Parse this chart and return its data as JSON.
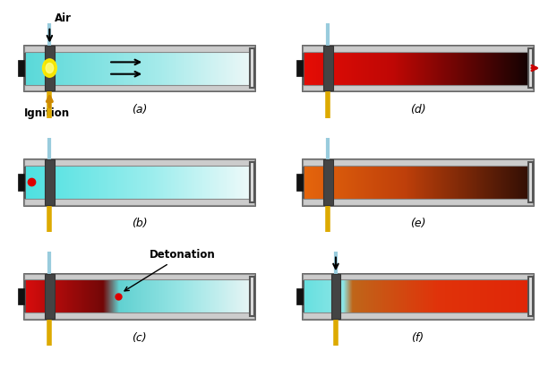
{
  "bg_color": "#ffffff",
  "label_a": "(a)",
  "label_b": "(b)",
  "label_c": "(c)",
  "label_d": "(d)",
  "label_e": "(e)",
  "label_f": "(f)",
  "text_air": "Air",
  "text_ignition": "Ignition",
  "text_detonation": "Detonation"
}
